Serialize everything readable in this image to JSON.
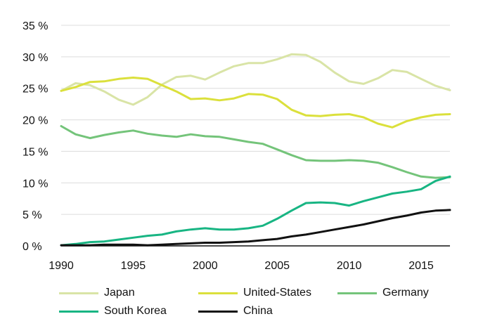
{
  "chart_data": {
    "type": "line",
    "x": [
      1990,
      1991,
      1992,
      1993,
      1994,
      1995,
      1996,
      1997,
      1998,
      1999,
      2000,
      2001,
      2002,
      2003,
      2004,
      2005,
      2006,
      2007,
      2008,
      2009,
      2010,
      2011,
      2012,
      2013,
      2014,
      2015,
      2016,
      2017
    ],
    "xlim": [
      1990,
      2017
    ],
    "ylim": [
      0,
      35
    ],
    "x_ticks": [
      1990,
      1995,
      2000,
      2005,
      2010,
      2015
    ],
    "x_tick_labels": [
      "1990",
      "1995",
      "2000",
      "2005",
      "2010",
      "2015"
    ],
    "y_ticks": [
      0,
      5,
      10,
      15,
      20,
      25,
      30,
      35
    ],
    "y_tick_labels": [
      "0 %",
      "5 %",
      "10 %",
      "15 %",
      "20 %",
      "25 %",
      "30 %",
      "35 %"
    ],
    "grid": "horizontal",
    "legend_position": "bottom",
    "series": [
      {
        "name": "Japan",
        "color": "#d9e4a6",
        "values": [
          24.6,
          25.8,
          25.5,
          24.5,
          23.2,
          22.4,
          23.6,
          25.6,
          26.8,
          27.0,
          26.4,
          27.5,
          28.5,
          29.0,
          29.0,
          29.6,
          30.4,
          30.3,
          29.2,
          27.5,
          26.1,
          25.7,
          26.6,
          27.9,
          27.6,
          26.5,
          25.4,
          24.7
        ]
      },
      {
        "name": "United-States",
        "color": "#dbe03c",
        "values": [
          24.6,
          25.2,
          26.0,
          26.1,
          26.5,
          26.7,
          26.5,
          25.5,
          24.5,
          23.3,
          23.4,
          23.1,
          23.4,
          24.1,
          24.0,
          23.3,
          21.6,
          20.7,
          20.6,
          20.8,
          20.9,
          20.4,
          19.4,
          18.8,
          19.8,
          20.4,
          20.8,
          20.9
        ]
      },
      {
        "name": "Germany",
        "color": "#74c47a",
        "values": [
          19.0,
          17.7,
          17.1,
          17.6,
          18.0,
          18.3,
          17.8,
          17.5,
          17.3,
          17.7,
          17.4,
          17.3,
          16.9,
          16.5,
          16.2,
          15.3,
          14.4,
          13.6,
          13.5,
          13.5,
          13.6,
          13.5,
          13.2,
          12.5,
          11.7,
          11.0,
          10.8,
          10.9
        ]
      },
      {
        "name": "South Korea",
        "color": "#18b583",
        "values": [
          0.1,
          0.3,
          0.6,
          0.7,
          1.0,
          1.3,
          1.6,
          1.8,
          2.3,
          2.6,
          2.8,
          2.6,
          2.6,
          2.8,
          3.2,
          4.3,
          5.6,
          6.8,
          6.9,
          6.8,
          6.4,
          7.1,
          7.7,
          8.3,
          8.6,
          9.0,
          10.3,
          11.0
        ]
      },
      {
        "name": "China",
        "color": "#111111",
        "values": [
          0.1,
          0.1,
          0.1,
          0.2,
          0.2,
          0.2,
          0.1,
          0.2,
          0.3,
          0.4,
          0.5,
          0.5,
          0.6,
          0.7,
          0.9,
          1.1,
          1.5,
          1.8,
          2.2,
          2.6,
          3.0,
          3.4,
          3.9,
          4.4,
          4.8,
          5.3,
          5.6,
          5.7
        ]
      }
    ]
  }
}
